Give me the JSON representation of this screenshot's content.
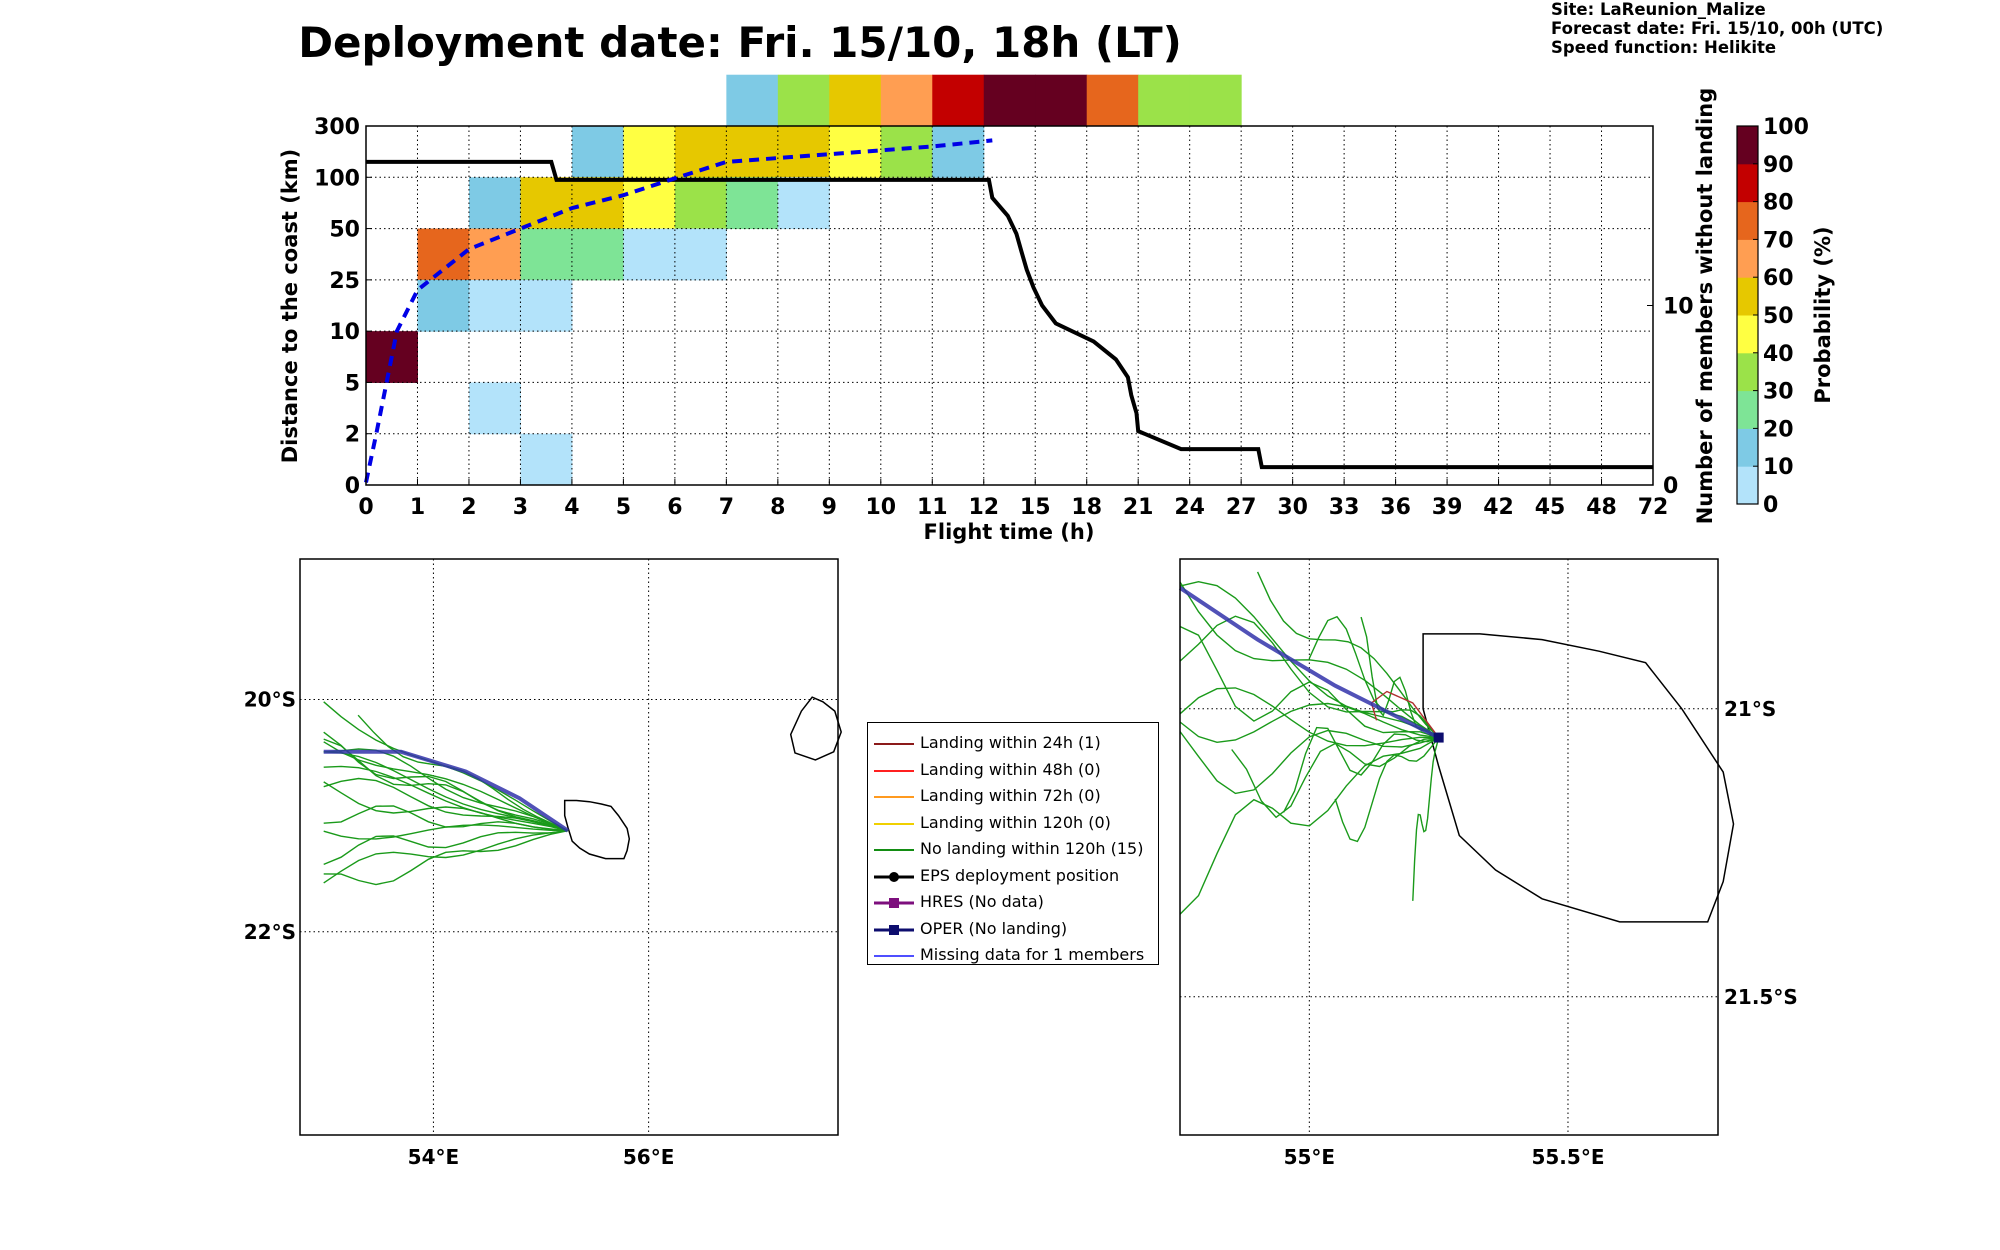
{
  "title": "Deployment date: Fri. 15/10, 18h (LT)",
  "info": {
    "site": "Site: LaReunion_Malize",
    "forecast": "Forecast date: Fri. 15/10, 00h (UTC)",
    "speed": "Speed function: Helikite"
  },
  "chart_data": [
    {
      "type": "heatmap",
      "xlabel": "Flight time (h)",
      "ylabel": "Distance to the coast (km)",
      "y2label": "Number of members without landing",
      "colorbar_label": "Probability (%)",
      "x_categories": [
        "0",
        "1",
        "2",
        "3",
        "4",
        "5",
        "6",
        "7",
        "8",
        "9",
        "10",
        "11",
        "12",
        "15",
        "18",
        "21",
        "24",
        "27",
        "30",
        "33",
        "36",
        "39",
        "42",
        "45",
        "48",
        "72"
      ],
      "y_categories": [
        "0",
        "2",
        "5",
        "10",
        "25",
        "50",
        "100",
        "300"
      ],
      "y2_ticks": [
        "0",
        "10"
      ],
      "y2_range": [
        0,
        20
      ],
      "colorbar_ticks": [
        "0",
        "10",
        "20",
        "30",
        "40",
        "50",
        "60",
        "70",
        "80",
        "90",
        "100"
      ],
      "colorbar_colors": [
        "#b3e3fa",
        "#7ecae5",
        "#7ee496",
        "#9be249",
        "#ffff42",
        "#e6c800",
        "#ff9e52",
        "#e6661d",
        "#c30000",
        "#650020"
      ],
      "cells": [
        {
          "col": 0,
          "row": 2,
          "value": 95
        },
        {
          "col": 1,
          "row": 4,
          "value": 75
        },
        {
          "col": 1,
          "row": 3,
          "value": 15
        },
        {
          "col": 2,
          "row": 5,
          "value": 15
        },
        {
          "col": 2,
          "row": 4,
          "value": 65
        },
        {
          "col": 2,
          "row": 3,
          "value": 5
        },
        {
          "col": 2,
          "row": 1,
          "value": 5
        },
        {
          "col": 3,
          "row": 5,
          "value": 55
        },
        {
          "col": 3,
          "row": 4,
          "value": 25
        },
        {
          "col": 3,
          "row": 3,
          "value": 5
        },
        {
          "col": 3,
          "row": 0,
          "value": 5
        },
        {
          "col": 4,
          "row": 6,
          "value": 15
        },
        {
          "col": 4,
          "row": 5,
          "value": 55
        },
        {
          "col": 4,
          "row": 4,
          "value": 25
        },
        {
          "col": 5,
          "row": 6,
          "value": 45
        },
        {
          "col": 5,
          "row": 5,
          "value": 45
        },
        {
          "col": 5,
          "row": 4,
          "value": 5
        },
        {
          "col": 6,
          "row": 6,
          "value": 55
        },
        {
          "col": 6,
          "row": 5,
          "value": 35
        },
        {
          "col": 6,
          "row": 4,
          "value": 5
        },
        {
          "col": 7,
          "row": 7,
          "value": 15
        },
        {
          "col": 7,
          "row": 6,
          "value": 55
        },
        {
          "col": 7,
          "row": 5,
          "value": 25
        },
        {
          "col": 8,
          "row": 7,
          "value": 35
        },
        {
          "col": 8,
          "row": 6,
          "value": 55
        },
        {
          "col": 8,
          "row": 5,
          "value": 5
        },
        {
          "col": 9,
          "row": 7,
          "value": 55
        },
        {
          "col": 9,
          "row": 6,
          "value": 45
        },
        {
          "col": 10,
          "row": 7,
          "value": 65
        },
        {
          "col": 10,
          "row": 6,
          "value": 35
        },
        {
          "col": 11,
          "row": 7,
          "value": 85
        },
        {
          "col": 11,
          "row": 6,
          "value": 15
        },
        {
          "col": 12,
          "row": 7,
          "value": 95
        },
        {
          "col": 13,
          "row": 7,
          "value": 95
        },
        {
          "col": 14,
          "row": 7,
          "value": 75
        },
        {
          "col": 15,
          "row": 7,
          "value": 35
        },
        {
          "col": 16,
          "row": 7,
          "value": 35
        }
      ],
      "members_line": [
        [
          0,
          18
        ],
        [
          3.6,
          18
        ],
        [
          3.7,
          17
        ],
        [
          12.3,
          17
        ],
        [
          12.5,
          16
        ],
        [
          13.4,
          15
        ],
        [
          13.9,
          14
        ],
        [
          14.2,
          13
        ],
        [
          14.5,
          12
        ],
        [
          14.9,
          11
        ],
        [
          15.4,
          10
        ],
        [
          16.2,
          9
        ],
        [
          18.4,
          8
        ],
        [
          19.7,
          7
        ],
        [
          20.4,
          6
        ],
        [
          20.6,
          5
        ],
        [
          20.9,
          4
        ],
        [
          21.0,
          3
        ],
        [
          23.5,
          2
        ],
        [
          28,
          2
        ],
        [
          28.2,
          1
        ],
        [
          72,
          1
        ]
      ],
      "median_distance_line": [
        [
          0,
          0.05
        ],
        [
          0.2,
          1.0
        ],
        [
          0.6,
          3.0
        ],
        [
          1.0,
          3.8
        ],
        [
          2.0,
          4.6
        ],
        [
          3.0,
          5.0
        ],
        [
          4.0,
          5.4
        ],
        [
          5.0,
          5.65
        ],
        [
          6.0,
          5.98
        ],
        [
          7.0,
          6.3
        ],
        [
          9.0,
          6.45
        ],
        [
          11.0,
          6.6
        ],
        [
          12.5,
          6.72
        ]
      ]
    },
    {
      "type": "map",
      "x_ticks": [
        "54°E",
        "56°E"
      ],
      "y_ticks": [
        "20°S",
        "22°S"
      ],
      "lon_range": [
        52.76,
        57.76
      ],
      "lat_range": [
        -18.79,
        -23.75
      ]
    },
    {
      "type": "map",
      "x_ticks": [
        "55°E",
        "55.5°E"
      ],
      "y_ticks": [
        "21°S",
        "21.5°S"
      ],
      "lon_range": [
        54.75,
        55.79
      ],
      "lat_range": [
        -20.74,
        -21.74
      ]
    }
  ],
  "legend": [
    {
      "label": "Landing within 24h (1)",
      "color": "#8b1a1a",
      "marker": "line"
    },
    {
      "label": "Landing within 48h (0)",
      "color": "#ff2020",
      "marker": "line"
    },
    {
      "label": "Landing within 72h (0)",
      "color": "#ff9a1f",
      "marker": "line"
    },
    {
      "label": "Landing within 120h (0)",
      "color": "#f0d000",
      "marker": "line"
    },
    {
      "label": "No landing within 120h (15)",
      "color": "#138d13",
      "marker": "line"
    },
    {
      "label": "EPS deployment position",
      "color": "#000000",
      "marker": "circle"
    },
    {
      "label": "HRES (No data)",
      "color": "#7d0f7d",
      "marker": "square"
    },
    {
      "label": "OPER (No landing)",
      "color": "#0d0d6e",
      "marker": "square"
    },
    {
      "label": "Missing data for 1 members",
      "color": "#4f4fff",
      "marker": "line"
    }
  ]
}
